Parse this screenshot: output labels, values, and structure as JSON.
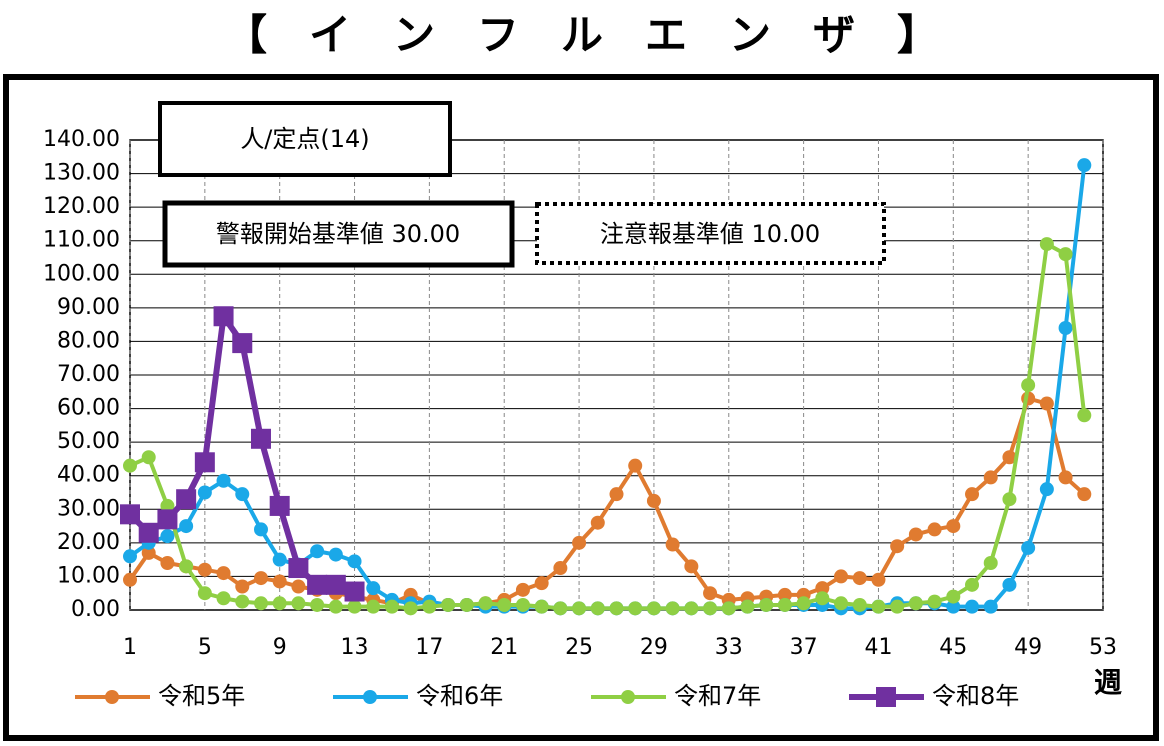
{
  "chart_data": {
    "type": "line",
    "title": "【　イ　ン　フ　ル　エ　ン　ザ　】",
    "y_unit": "人/定点(14)",
    "alert_label": "警報開始基準値 30.00",
    "warning_label": "注意報基準値 10.00",
    "x_label": "週",
    "x": [
      1,
      2,
      3,
      4,
      5,
      6,
      7,
      8,
      9,
      10,
      11,
      12,
      13,
      14,
      15,
      16,
      17,
      18,
      19,
      20,
      21,
      22,
      23,
      24,
      25,
      26,
      27,
      28,
      29,
      30,
      31,
      32,
      33,
      34,
      35,
      36,
      37,
      38,
      39,
      40,
      41,
      42,
      43,
      44,
      45,
      46,
      47,
      48,
      49,
      50,
      51,
      52
    ],
    "xlim": [
      1,
      53
    ],
    "xticks": [
      1,
      5,
      9,
      13,
      17,
      21,
      25,
      29,
      33,
      37,
      41,
      45,
      49,
      53
    ],
    "ylim": [
      0,
      140
    ],
    "yticks": [
      {
        "value": 0,
        "label": "0.00"
      },
      {
        "value": 10,
        "label": "10.00"
      },
      {
        "value": 20,
        "label": "20.00"
      },
      {
        "value": 30,
        "label": "30.00"
      },
      {
        "value": 40,
        "label": "40.00"
      },
      {
        "value": 50,
        "label": "50.00"
      },
      {
        "value": 60,
        "label": "60.00"
      },
      {
        "value": 70,
        "label": "70.00"
      },
      {
        "value": 80,
        "label": "80.00"
      },
      {
        "value": 90,
        "label": "90.00"
      },
      {
        "value": 100,
        "label": "100.00"
      },
      {
        "value": 110,
        "label": "110.00"
      },
      {
        "value": 120,
        "label": "120.00"
      },
      {
        "value": 130,
        "label": "130.00"
      },
      {
        "value": 140,
        "label": "140.00"
      }
    ],
    "grid": true,
    "series": [
      {
        "name": "令和5年",
        "color": "#e07b30",
        "marker": "circle",
        "values": [
          9,
          17,
          14,
          13,
          12,
          11,
          7,
          9.5,
          8.5,
          7,
          6,
          5,
          4,
          3,
          2,
          4.5,
          2,
          1.5,
          1.5,
          2,
          3,
          6,
          8,
          12.5,
          20,
          26,
          34.5,
          43,
          32.5,
          19.5,
          13,
          5,
          3,
          3.5,
          4,
          4.5,
          4.5,
          6.5,
          10,
          9.5,
          9,
          19,
          22.5,
          24,
          25,
          34.5,
          39.5,
          45.5,
          63,
          61.5,
          39.5,
          34.5
        ]
      },
      {
        "name": "令和6年",
        "color": "#1aa8e8",
        "marker": "circle",
        "values": [
          16,
          20,
          22,
          25,
          35,
          38.5,
          34.5,
          24,
          15,
          13.5,
          17.5,
          16.5,
          14.5,
          6.5,
          3,
          2,
          2.5,
          1.5,
          1.5,
          1,
          1,
          1,
          1,
          0.5,
          0.5,
          0.5,
          0.5,
          0.5,
          0.5,
          0.5,
          0.5,
          0.5,
          0.5,
          1,
          1.5,
          1.5,
          1.5,
          1.5,
          0.5,
          0.5,
          1,
          2,
          2,
          2,
          1,
          1,
          1,
          7.5,
          18.5,
          36,
          84,
          132.5
        ]
      },
      {
        "name": "令和7年",
        "color": "#8fcf44",
        "marker": "circle",
        "values": [
          43,
          45.5,
          31,
          13,
          5,
          3.5,
          2.5,
          2,
          2,
          2,
          1.5,
          1,
          1,
          1,
          1,
          0.5,
          1,
          1.5,
          1.5,
          2,
          1.5,
          1.5,
          1,
          0.5,
          0.5,
          0.5,
          0.5,
          0.5,
          0.5,
          0.5,
          0.5,
          0.5,
          0.5,
          1,
          1.5,
          1.5,
          2,
          3.5,
          2,
          1.5,
          1,
          1,
          2,
          2.5,
          4,
          7.5,
          14,
          33,
          67,
          109,
          106,
          58
        ]
      },
      {
        "name": "令和8年",
        "color": "#7030a0",
        "marker": "square",
        "values": [
          28.5,
          23,
          27,
          33,
          44,
          87.5,
          79.5,
          51,
          31,
          12.5,
          7.5,
          7.5,
          5.5,
          null,
          null,
          null,
          null,
          null,
          null,
          null,
          null,
          null,
          null,
          null,
          null,
          null,
          null,
          null,
          null,
          null,
          null,
          null,
          null,
          null,
          null,
          null,
          null,
          null,
          null,
          null,
          null,
          null,
          null,
          null,
          null,
          null,
          null,
          null,
          null,
          null,
          null,
          null
        ]
      }
    ]
  }
}
